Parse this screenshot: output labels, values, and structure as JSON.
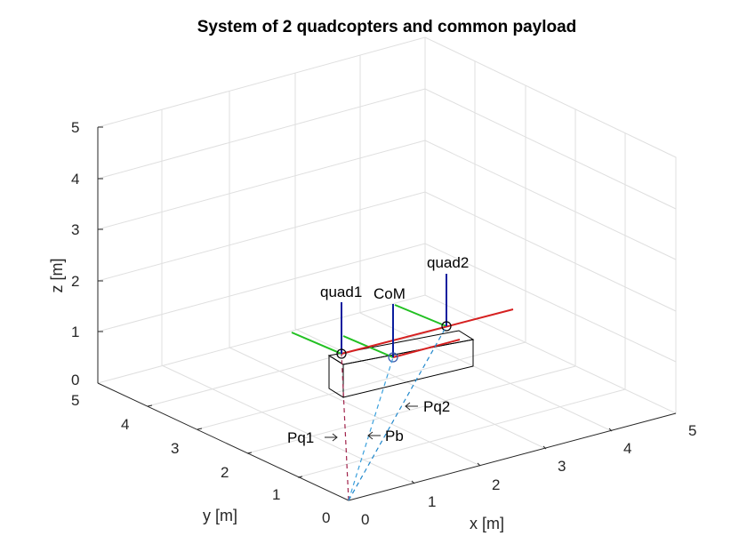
{
  "title": "System of 2 quadcopters and common payload",
  "axes": {
    "x_label": "x [m]",
    "y_label": "y [m]",
    "z_label": "z [m]",
    "x_ticks": [
      "0",
      "1",
      "2",
      "3",
      "4",
      "5"
    ],
    "y_ticks": [
      "0",
      "1",
      "2",
      "3",
      "4",
      "5"
    ],
    "z_ticks": [
      "0",
      "1",
      "2",
      "3",
      "4",
      "5"
    ]
  },
  "labels": {
    "quad1": "quad1",
    "quad2": "quad2",
    "com": "CoM",
    "pq1": "Pq1",
    "pq2": "Pq2",
    "pb": "Pb"
  },
  "colors": {
    "x_axis": "#d62020",
    "y_axis": "#22c022",
    "z_axis": "#0b1e9e",
    "pq1": "#a0224a",
    "pq2": "#2288cc",
    "pb": "#3aa0dd",
    "grid": "#dfdfdf"
  }
}
